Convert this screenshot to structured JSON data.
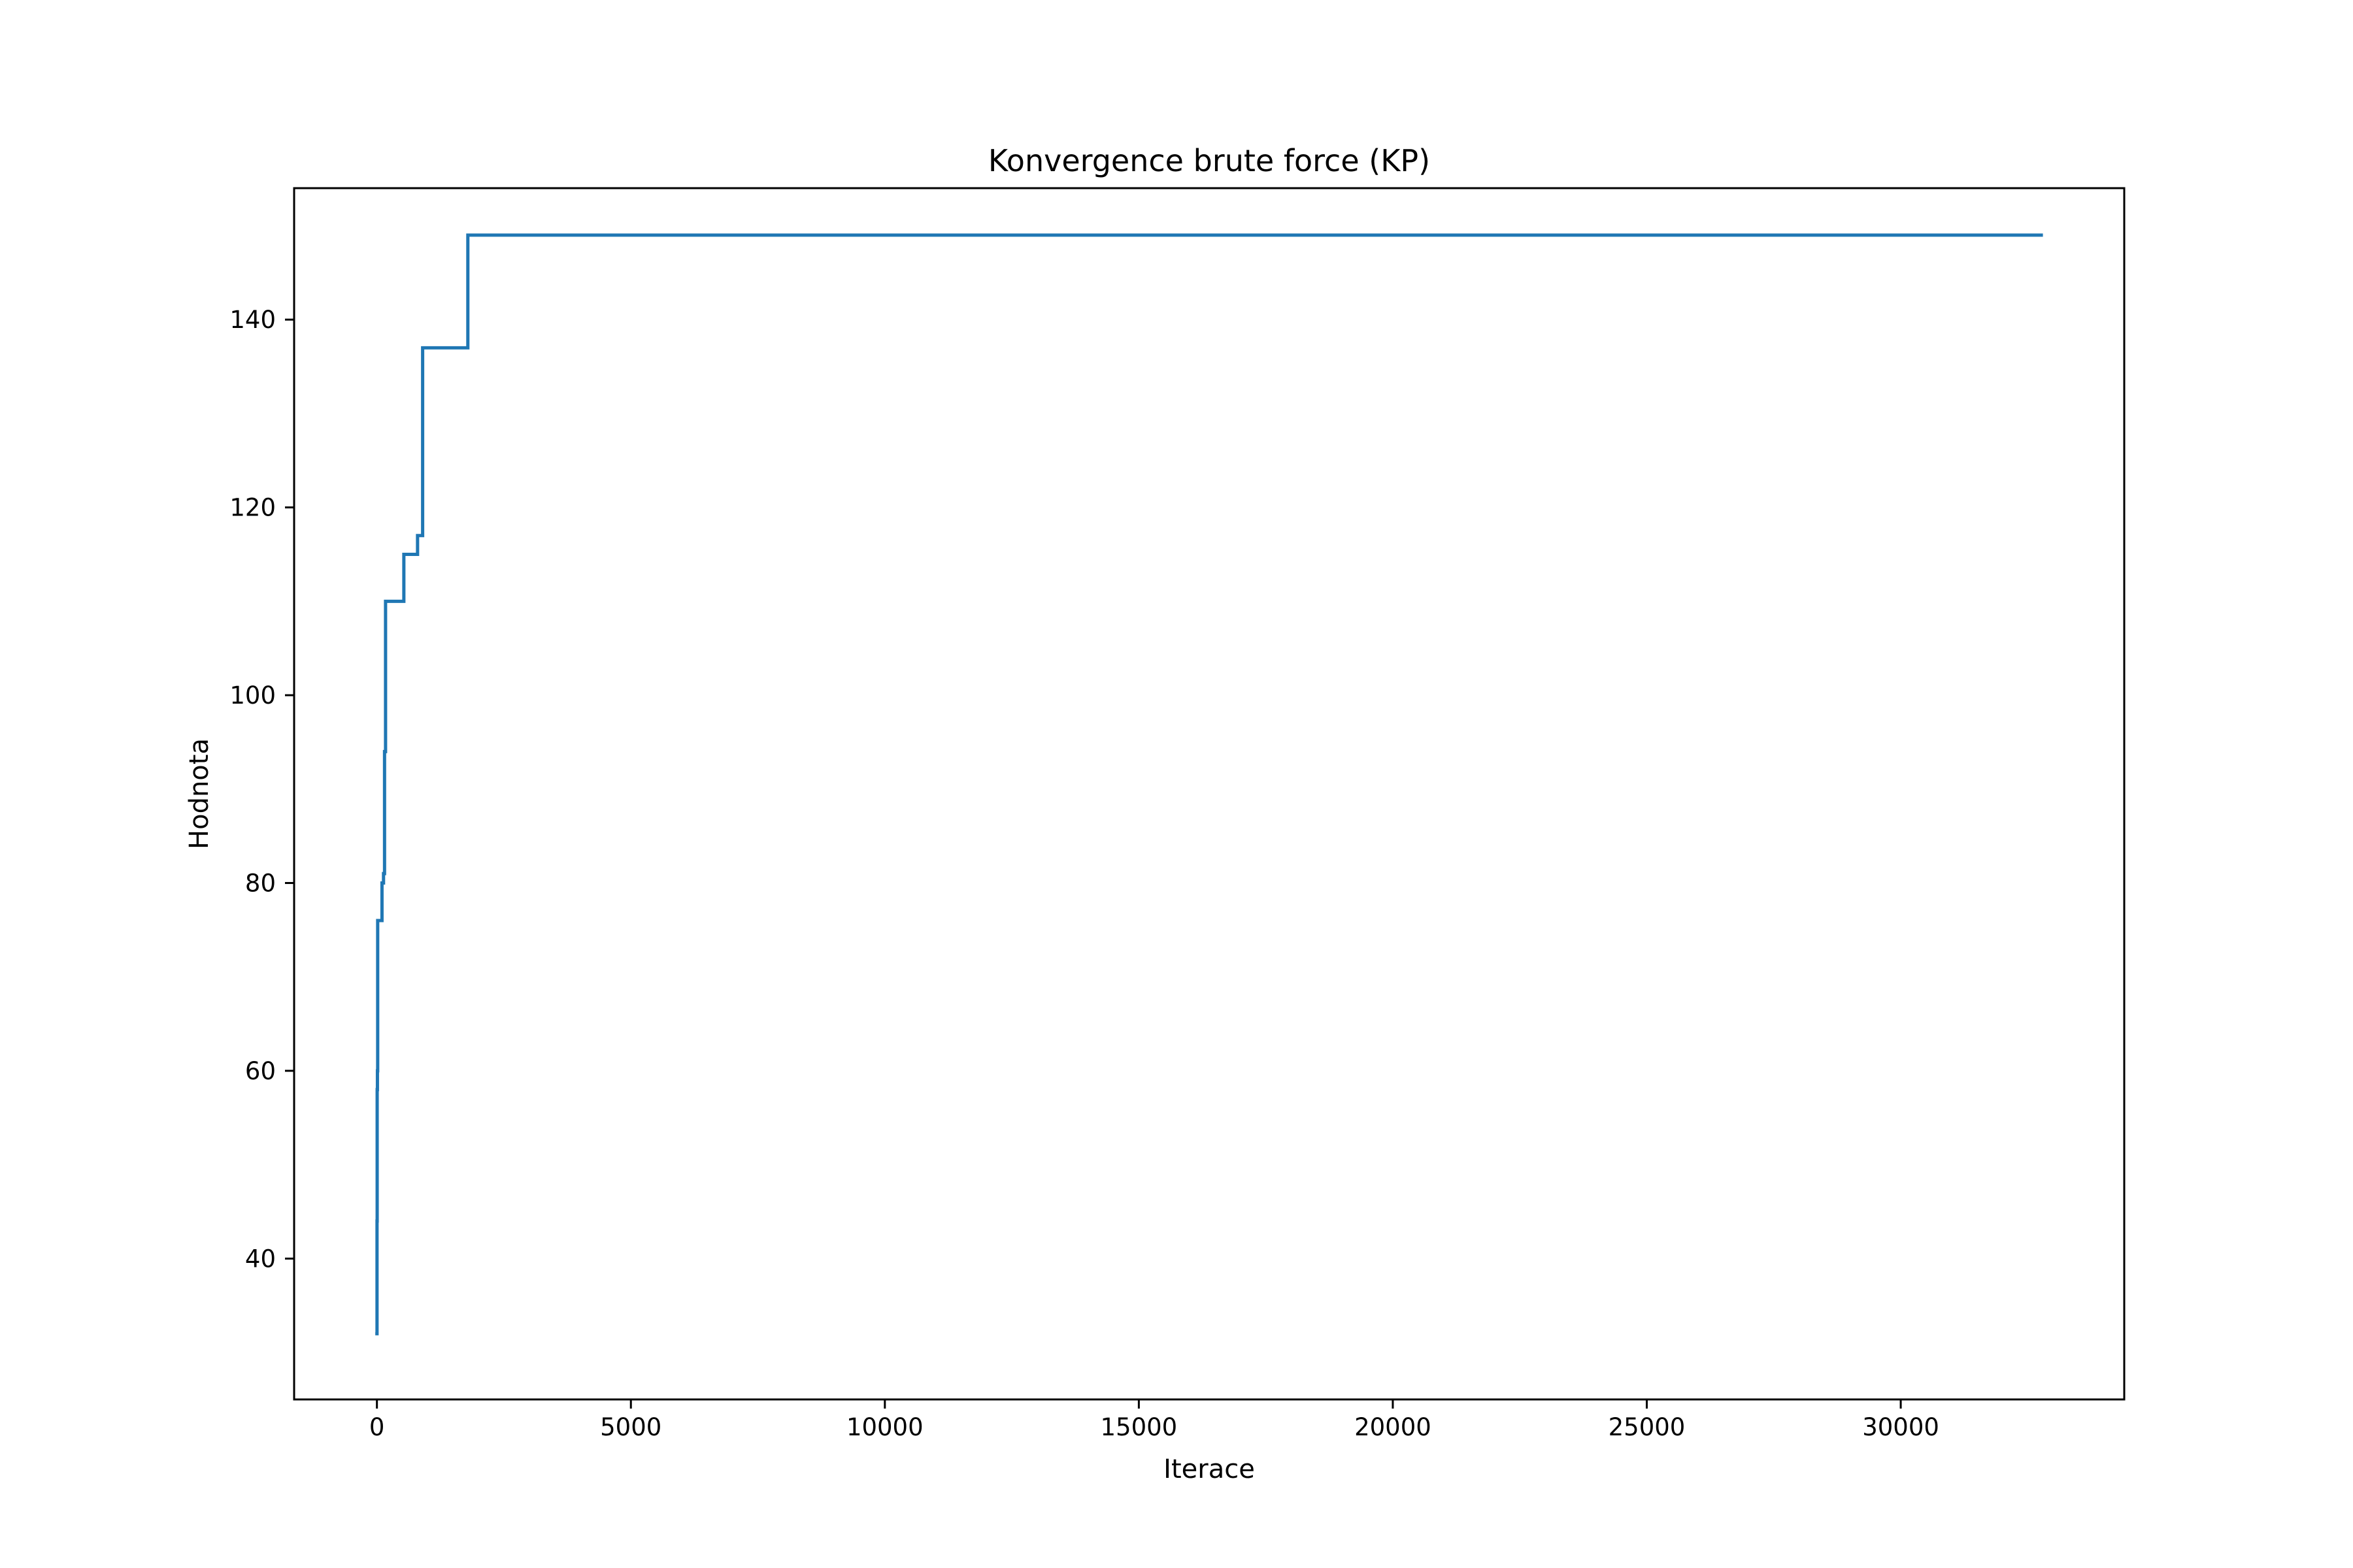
{
  "chart_data": {
    "type": "line",
    "title": "Konvergence brute force (KP)",
    "xlabel": "Iterace",
    "ylabel": "Hodnota",
    "xlim": [
      -1630,
      34400
    ],
    "ylim": [
      25,
      154
    ],
    "x_ticks": [
      0,
      5000,
      10000,
      15000,
      20000,
      25000,
      30000
    ],
    "y_ticks": [
      40,
      60,
      80,
      100,
      120,
      140
    ],
    "grid": false,
    "legend": "none",
    "line_color": "#1f77b4",
    "series": [
      {
        "step": "post",
        "x": [
          0,
          2,
          5,
          10,
          15,
          20,
          40,
          60,
          100,
          130,
          150,
          160,
          170,
          450,
          530,
          750,
          800,
          900,
          1000,
          1790,
          32767
        ],
        "y": [
          32,
          44,
          58,
          60,
          76,
          76,
          76,
          76,
          80,
          81,
          94,
          94,
          110,
          110,
          115,
          115,
          117,
          137,
          137,
          149,
          149
        ]
      }
    ]
  }
}
